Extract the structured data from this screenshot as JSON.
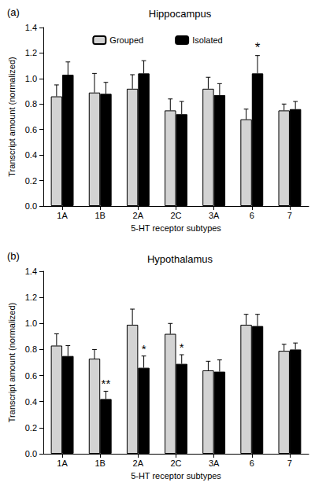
{
  "chart_data": [
    {
      "type": "bar",
      "title": "Hippocampus",
      "panel_label": "(a)",
      "x_label": "5-HT receptor subtypes",
      "y_label": "Transcript amount (normalized)",
      "categories": [
        "1A",
        "1B",
        "2A",
        "2C",
        "3A",
        "6",
        "7"
      ],
      "series": [
        {
          "name": "Grouped",
          "color": "#d3d3d3",
          "values": [
            0.86,
            0.89,
            0.92,
            0.75,
            0.92,
            0.68,
            0.75
          ],
          "errors": [
            0.09,
            0.15,
            0.11,
            0.09,
            0.09,
            0.08,
            0.05
          ]
        },
        {
          "name": "Isolated",
          "color": "#000000",
          "values": [
            1.03,
            0.88,
            1.04,
            0.72,
            0.87,
            1.04,
            0.76
          ],
          "errors": [
            0.1,
            0.09,
            0.1,
            0.1,
            0.09,
            0.14,
            0.06
          ]
        }
      ],
      "annotations": [
        {
          "category": "6",
          "series": "Isolated",
          "text": "*"
        }
      ],
      "ylim": [
        0,
        1.4
      ],
      "yticks": [
        {
          "value": 0,
          "label": "0.0"
        },
        0.2,
        0.4,
        0.6,
        0.8,
        {
          "value": 1,
          "label": "1.0"
        },
        1.2,
        1.4
      ],
      "grid": false,
      "legend": "top"
    },
    {
      "type": "bar",
      "title": "Hypothalamus",
      "panel_label": "(b)",
      "x_label": "5-HT receptor subtypes",
      "y_label": "Transcript amount (normalized)",
      "categories": [
        "1A",
        "1B",
        "2A",
        "2C",
        "3A",
        "6",
        "7"
      ],
      "series": [
        {
          "name": "Grouped",
          "color": "#d3d3d3",
          "values": [
            0.83,
            0.73,
            0.99,
            0.92,
            0.64,
            0.99,
            0.79
          ],
          "errors": [
            0.09,
            0.07,
            0.12,
            0.08,
            0.07,
            0.08,
            0.05
          ]
        },
        {
          "name": "Isolated",
          "color": "#000000",
          "values": [
            0.75,
            0.42,
            0.66,
            0.69,
            0.63,
            0.98,
            0.8
          ],
          "errors": [
            0.08,
            0.06,
            0.09,
            0.07,
            0.09,
            0.09,
            0.05
          ]
        }
      ],
      "annotations": [
        {
          "category": "1B",
          "series": "Isolated",
          "text": "**"
        },
        {
          "category": "2A",
          "series": "Isolated",
          "text": "*"
        },
        {
          "category": "2C",
          "series": "Isolated",
          "text": "*"
        }
      ],
      "ylim": [
        0,
        1.4
      ],
      "yticks": [
        {
          "value": 0,
          "label": "0.0"
        },
        0.2,
        0.4,
        0.6,
        0.8,
        {
          "value": 1,
          "label": "1.0"
        },
        1.2,
        1.4
      ],
      "grid": false
    }
  ]
}
